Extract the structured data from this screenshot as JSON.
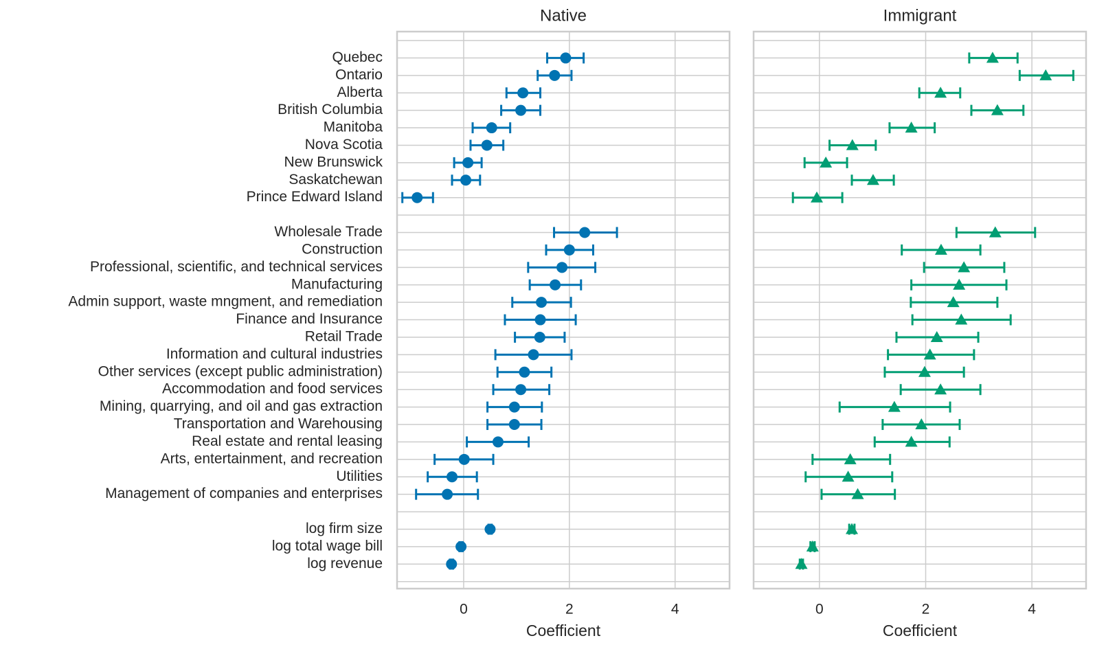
{
  "chart_data": [
    {
      "type": "scatter",
      "title": "Native",
      "xlabel": "Coefficient",
      "marker": "circle",
      "color": "#0173b2",
      "xlim": [
        -1.26,
        5.03
      ],
      "xticks": [
        0,
        2,
        4
      ],
      "grid": true,
      "categories": [
        null,
        "Quebec",
        "Ontario",
        "Alberta",
        "British Columbia",
        "Manitoba",
        "Nova Scotia",
        "New Brunswick",
        "Saskatchewan",
        "Prince Edward Island",
        null,
        "Wholesale Trade",
        "Construction",
        "Professional, scientific, and technical services",
        "Manufacturing",
        "Admin support, waste mngment, and remediation",
        "Finance and Insurance",
        "Retail Trade",
        "Information and cultural industries",
        "Other services (except public administration)",
        "Accommodation and food services",
        "Mining, quarrying, and oil and gas extraction",
        "Transportation and Warehousing",
        "Real estate and rental leasing",
        "Arts, entertainment, and recreation",
        "Utilities",
        "Management of companies and enterprises",
        null,
        "log firm size",
        "log total wage bill",
        "log revenue",
        null
      ],
      "values": [
        null,
        1.93,
        1.72,
        1.12,
        1.08,
        0.53,
        0.44,
        0.08,
        0.04,
        -0.88,
        null,
        2.29,
        2.0,
        1.86,
        1.73,
        1.47,
        1.45,
        1.44,
        1.32,
        1.15,
        1.08,
        0.96,
        0.96,
        0.65,
        0.01,
        -0.22,
        -0.31,
        null,
        0.5,
        -0.05,
        -0.23,
        null
      ],
      "lower": [
        null,
        1.58,
        1.4,
        0.81,
        0.71,
        0.17,
        0.13,
        -0.18,
        -0.22,
        -1.16,
        null,
        1.71,
        1.56,
        1.22,
        1.25,
        0.92,
        0.78,
        0.97,
        0.6,
        0.64,
        0.56,
        0.45,
        0.45,
        0.06,
        -0.55,
        -0.68,
        -0.9,
        null,
        0.47,
        -0.08,
        -0.26,
        null
      ],
      "upper": [
        null,
        2.27,
        2.04,
        1.45,
        1.45,
        0.88,
        0.75,
        0.34,
        0.31,
        -0.58,
        null,
        2.9,
        2.45,
        2.49,
        2.22,
        2.03,
        2.12,
        1.91,
        2.04,
        1.66,
        1.62,
        1.48,
        1.47,
        1.23,
        0.56,
        0.25,
        0.27,
        null,
        0.53,
        -0.02,
        -0.2,
        null
      ]
    },
    {
      "type": "scatter",
      "title": "Immigrant",
      "xlabel": "Coefficient",
      "marker": "triangle",
      "color": "#029e73",
      "xlim": [
        -1.24,
        5.02
      ],
      "xticks": [
        0,
        2,
        4
      ],
      "grid": true,
      "values": [
        null,
        3.26,
        4.26,
        2.28,
        3.35,
        1.73,
        0.62,
        0.12,
        1.01,
        -0.05,
        null,
        3.31,
        2.29,
        2.72,
        2.63,
        2.52,
        2.67,
        2.21,
        2.08,
        1.98,
        2.28,
        1.41,
        1.92,
        1.73,
        0.58,
        0.54,
        0.72,
        null,
        0.61,
        -0.13,
        -0.34,
        null
      ],
      "lower": [
        null,
        2.82,
        3.77,
        1.88,
        2.86,
        1.32,
        0.19,
        -0.28,
        0.61,
        -0.5,
        null,
        2.58,
        1.55,
        1.97,
        1.73,
        1.72,
        1.75,
        1.45,
        1.29,
        1.23,
        1.53,
        0.38,
        1.19,
        1.04,
        -0.13,
        -0.26,
        0.04,
        null,
        0.56,
        -0.17,
        -0.37,
        null
      ],
      "upper": [
        null,
        3.73,
        4.78,
        2.65,
        3.84,
        2.17,
        1.06,
        0.52,
        1.4,
        0.43,
        null,
        4.06,
        3.03,
        3.48,
        3.52,
        3.35,
        3.6,
        2.99,
        2.91,
        2.72,
        3.03,
        2.46,
        2.64,
        2.45,
        1.33,
        1.37,
        1.42,
        null,
        0.66,
        -0.09,
        -0.31,
        null
      ]
    }
  ]
}
